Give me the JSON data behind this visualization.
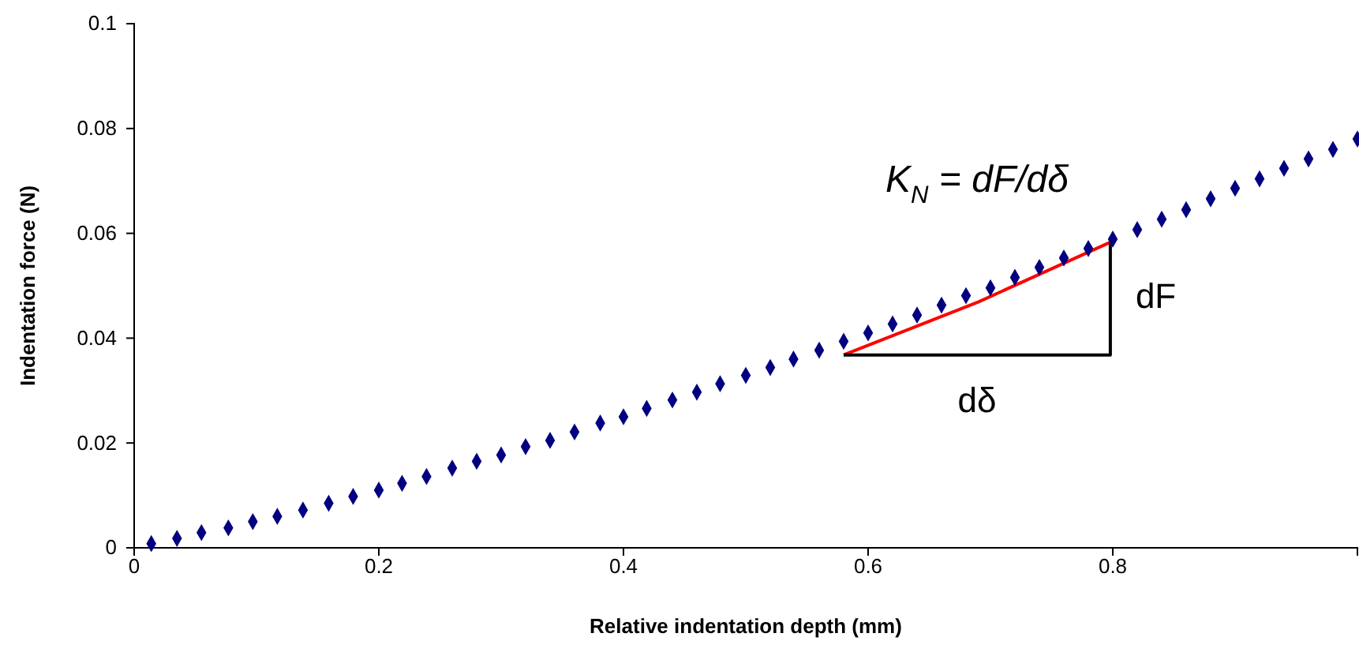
{
  "chart_data": {
    "type": "scatter",
    "xlabel": "Relative indentation depth (mm)",
    "ylabel": "Indentation force (N)",
    "xlim": [
      0,
      1
    ],
    "xticks": [
      0,
      0.2,
      0.4,
      0.6,
      0.8
    ],
    "ylim": [
      0,
      0.1
    ],
    "yticks": [
      0,
      0.02,
      0.04,
      0.06,
      0.08,
      0.1
    ],
    "grid": false,
    "series": [
      {
        "marker": "diamond",
        "color": "#000080",
        "x": [
          0.014,
          0.035,
          0.055,
          0.077,
          0.097,
          0.117,
          0.138,
          0.159,
          0.179,
          0.2,
          0.219,
          0.239,
          0.26,
          0.28,
          0.3,
          0.32,
          0.34,
          0.36,
          0.381,
          0.4,
          0.419,
          0.44,
          0.46,
          0.479,
          0.5,
          0.52,
          0.539,
          0.56,
          0.58,
          0.6,
          0.62,
          0.64,
          0.66,
          0.68,
          0.7,
          0.72,
          0.74,
          0.76,
          0.78,
          0.8,
          0.82,
          0.84,
          0.86,
          0.88,
          0.9,
          0.92,
          0.94,
          0.96,
          0.98,
          1.0
        ],
        "values": [
          0.0008,
          0.0018,
          0.0029,
          0.0038,
          0.005,
          0.006,
          0.0072,
          0.0085,
          0.0098,
          0.011,
          0.0123,
          0.0136,
          0.0152,
          0.0165,
          0.0177,
          0.0193,
          0.0205,
          0.0221,
          0.0238,
          0.025,
          0.0266,
          0.0282,
          0.0297,
          0.0313,
          0.0329,
          0.0344,
          0.036,
          0.0377,
          0.0394,
          0.041,
          0.0427,
          0.0444,
          0.0463,
          0.0481,
          0.0496,
          0.0516,
          0.0535,
          0.0553,
          0.0571,
          0.0589,
          0.0607,
          0.0627,
          0.0645,
          0.0666,
          0.0686,
          0.0704,
          0.0724,
          0.0742,
          0.076,
          0.078
        ]
      },
      {
        "type": "line",
        "color": "#ff0000",
        "x": [
          0.58,
          0.69,
          0.798
        ],
        "values": [
          0.0368,
          0.0469,
          0.0583
        ]
      },
      {
        "type": "line",
        "color": "#000000",
        "x": [
          0.58,
          0.798,
          0.798
        ],
        "values": [
          0.0368,
          0.0368,
          0.0583
        ]
      }
    ],
    "annotations": [
      "K$_{N}$ = dF/dδ",
      "dF",
      "dδ"
    ]
  }
}
